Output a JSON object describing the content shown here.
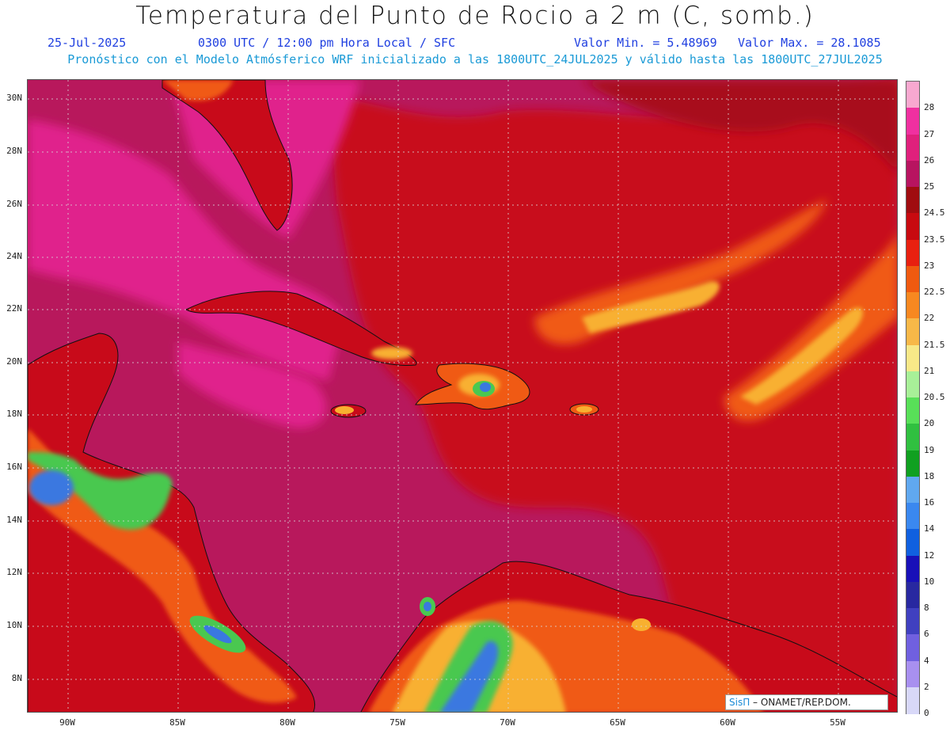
{
  "header": {
    "title": "Temperatura del Punto de Rocio a 2 m (C, somb.)",
    "date": "25-Jul-2025",
    "time": "0300 UTC / 12:00 pm Hora Local / SFC",
    "min": "Valor Min. = 5.48969",
    "max": "Valor Max. = 28.1085",
    "forecast": "Pronóstico con el Modelo Atmósferico WRF inicializado a las 1800UTC_24JUL2025 y válido hasta las  1800UTC_27JUL2025"
  },
  "map": {
    "lat_labels": [
      "30N",
      "28N",
      "26N",
      "24N",
      "22N",
      "20N",
      "18N",
      "16N",
      "14N",
      "12N",
      "10N",
      "8N"
    ],
    "lon_labels": [
      "90W",
      "85W",
      "80W",
      "75W",
      "70W",
      "65W",
      "60W",
      "55W"
    ],
    "colors": {
      "ocean_deep": "#b8185c",
      "ocean_pink": "#e0208c",
      "warm_red": "#c80a1a",
      "orange": "#f05a14",
      "yellow_orange": "#f8b030",
      "green": "#4ac850",
      "blue": "#3a78e0"
    }
  },
  "colorbar": {
    "labels": [
      "28",
      "27",
      "26",
      "25",
      "24.5",
      "23.5",
      "23",
      "22.5",
      "22",
      "21.5",
      "21",
      "20.5",
      "20",
      "19",
      "18",
      "16",
      "14",
      "12",
      "10",
      "8",
      "6",
      "4",
      "2",
      "0"
    ],
    "colors": [
      "#f8a8d0",
      "#f030a0",
      "#e0207c",
      "#b81460",
      "#a00c10",
      "#c80a10",
      "#e82010",
      "#f05a10",
      "#f88820",
      "#f8b848",
      "#f8e888",
      "#a8f098",
      "#58e058",
      "#30c040",
      "#10a020",
      "#60a8f0",
      "#3a88f0",
      "#1060e0",
      "#1810b8",
      "#2828a0",
      "#4040c0",
      "#7060e0",
      "#a890f0",
      "#d8d8f8"
    ]
  },
  "credit": {
    "brand": "SisΠ",
    "org": " – ONAMET/REP.DOM."
  }
}
